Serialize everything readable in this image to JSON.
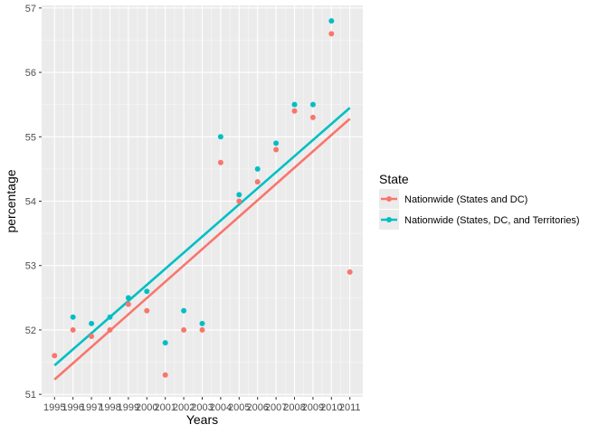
{
  "chart_data": {
    "type": "scatter",
    "xlabel": "Years",
    "ylabel": "percentage",
    "xlim": [
      1994.3,
      2011.7
    ],
    "ylim": [
      50.96,
      57.04
    ],
    "xticks": [
      1995,
      1996,
      1997,
      1998,
      1999,
      2000,
      2001,
      2002,
      2003,
      2004,
      2005,
      2006,
      2007,
      2008,
      2009,
      2010,
      2011
    ],
    "yticks": [
      51,
      52,
      53,
      54,
      55,
      56,
      57
    ],
    "grid": true,
    "legend": {
      "title": "State",
      "position": "right"
    },
    "series": [
      {
        "name": "Nationwide (States and DC)",
        "color": "#F8766D",
        "x": [
          1995,
          1996,
          1997,
          1998,
          1999,
          2000,
          2001,
          2002,
          2003,
          2004,
          2005,
          2006,
          2007,
          2008,
          2009,
          2010,
          2011
        ],
        "y": [
          51.6,
          52.0,
          51.9,
          52.0,
          52.4,
          52.3,
          51.3,
          52.0,
          52.0,
          54.6,
          54.0,
          54.3,
          54.8,
          55.4,
          55.3,
          56.6,
          52.9
        ],
        "trend": {
          "x": [
            1995,
            2011
          ],
          "y": [
            51.23,
            55.28
          ]
        }
      },
      {
        "name": "Nationwide (States, DC, and Territories)",
        "color": "#00BFC4",
        "x": [
          1996,
          1997,
          1998,
          1999,
          2000,
          2001,
          2002,
          2003,
          2004,
          2005,
          2006,
          2007,
          2008,
          2009,
          2010
        ],
        "y": [
          52.2,
          52.1,
          52.2,
          52.5,
          52.6,
          51.8,
          52.3,
          52.1,
          55.0,
          54.1,
          54.5,
          54.9,
          55.5,
          55.5,
          56.8
        ],
        "trend": {
          "x": [
            1995,
            2011
          ],
          "y": [
            51.45,
            55.45
          ]
        }
      }
    ]
  }
}
